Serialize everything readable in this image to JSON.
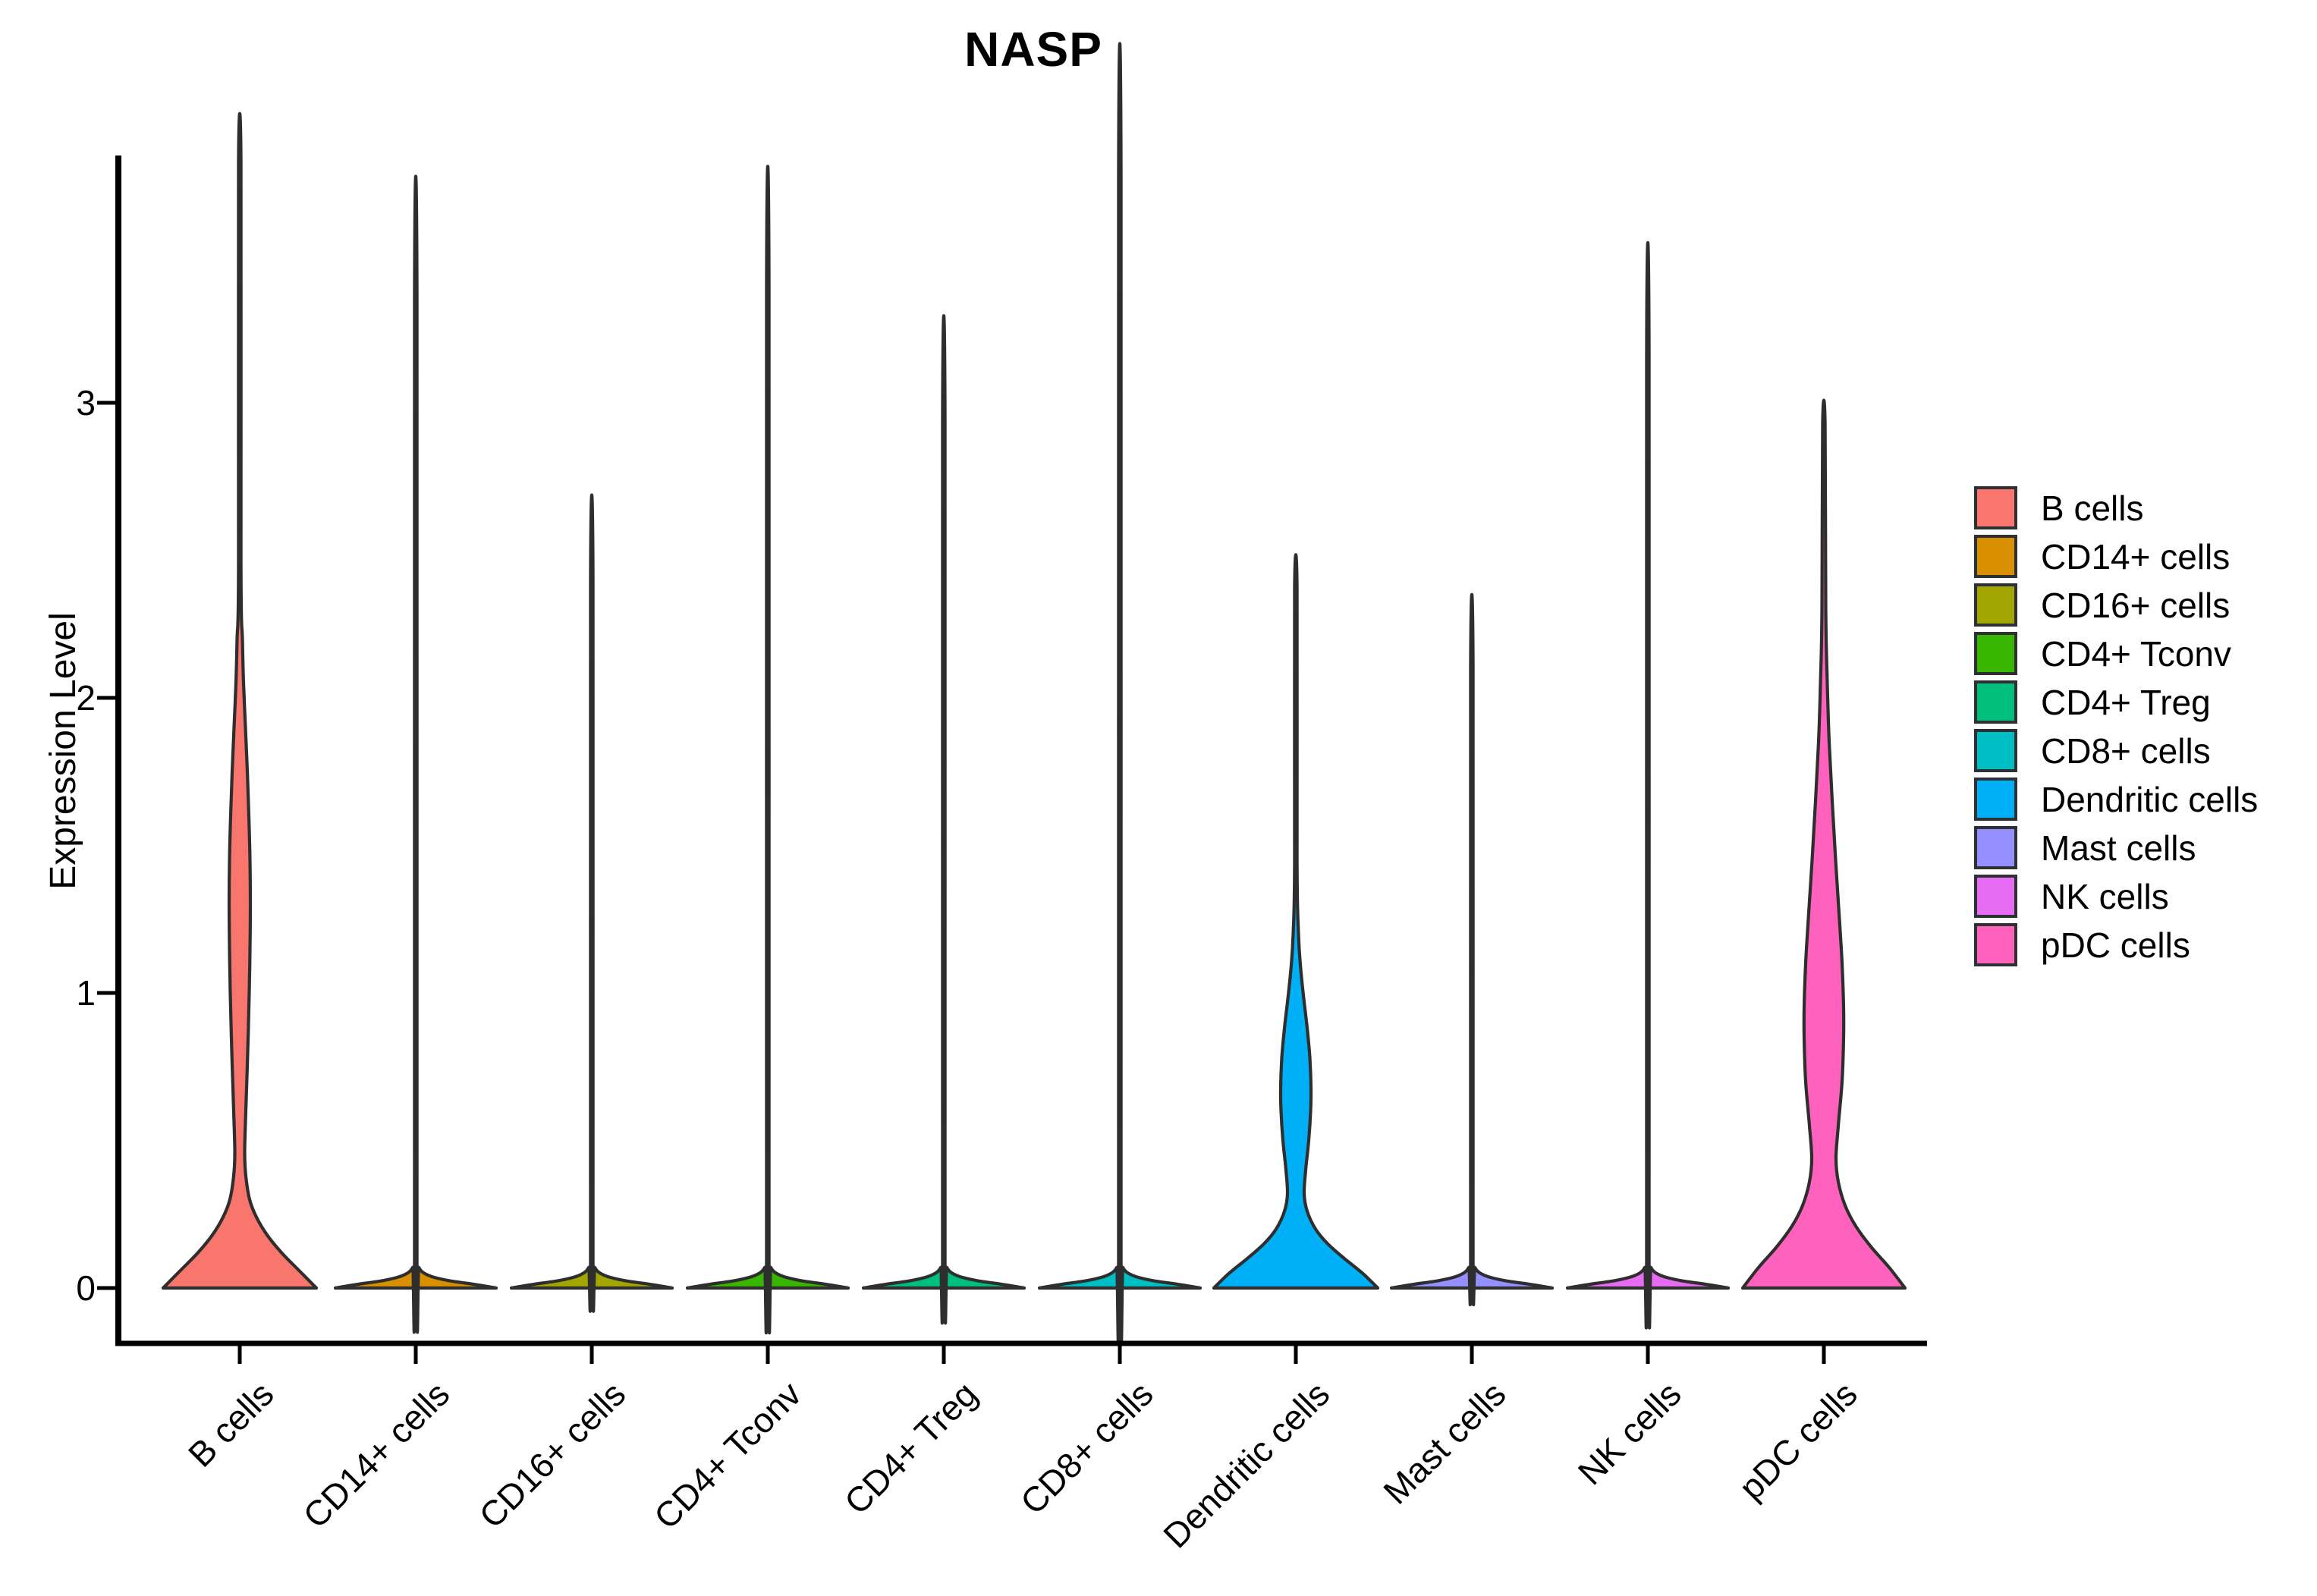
{
  "title": "NASP",
  "chart_data": {
    "type": "violin",
    "title": "NASP",
    "xlabel": "",
    "ylabel": "Expression Level",
    "y_ticks": [
      0,
      1,
      2,
      3
    ],
    "ylim": [
      -0.19,
      3.95
    ],
    "grid": false,
    "legend_position": "right",
    "x_label_rotation_deg": 45,
    "outline_color": "#2e2e2e",
    "categories": [
      "B cells",
      "CD14+ cells",
      "CD16+ cells",
      "CD4+ Tconv",
      "CD4+ Treg",
      "CD8+ cells",
      "Dendritic cells",
      "Mast cells",
      "NK cells",
      "pDC cells"
    ],
    "series": [
      {
        "name": "B cells",
        "color": "#F8766D",
        "max_expression": 3.81,
        "profile": [
          [
            0,
            101
          ],
          [
            0.06,
            78
          ],
          [
            0.12,
            55
          ],
          [
            0.18,
            36
          ],
          [
            0.24,
            22
          ],
          [
            0.3,
            13
          ],
          [
            0.38,
            8
          ],
          [
            0.46,
            6.5
          ],
          [
            0.6,
            8
          ],
          [
            0.8,
            10.5
          ],
          [
            1.0,
            12.5
          ],
          [
            1.15,
            13.5
          ],
          [
            1.3,
            14
          ],
          [
            1.45,
            13.5
          ],
          [
            1.6,
            12
          ],
          [
            1.75,
            10
          ],
          [
            1.9,
            7.5
          ],
          [
            2.05,
            5
          ],
          [
            2.2,
            3.5
          ],
          [
            2.45,
            1.6
          ],
          [
            3.81,
            1.6
          ]
        ]
      },
      {
        "name": "CD14+ cells",
        "color": "#D89000",
        "max_expression": 3.36,
        "profile": [
          [
            0,
            106
          ],
          [
            0.012,
            78
          ],
          [
            0.024,
            46
          ],
          [
            0.038,
            22
          ],
          [
            0.052,
            10
          ],
          [
            0.07,
            4
          ],
          [
            0.1,
            1.6
          ],
          [
            3.36,
            1.6
          ]
        ]
      },
      {
        "name": "CD16+ cells",
        "color": "#A3A500",
        "max_expression": 2.4,
        "profile": [
          [
            0,
            106
          ],
          [
            0.012,
            78
          ],
          [
            0.024,
            46
          ],
          [
            0.038,
            22
          ],
          [
            0.052,
            10
          ],
          [
            0.07,
            4
          ],
          [
            0.1,
            1.6
          ],
          [
            2.4,
            1.6
          ]
        ]
      },
      {
        "name": "CD4+ Tconv",
        "color": "#39B600",
        "max_expression": 3.39,
        "profile": [
          [
            0,
            106
          ],
          [
            0.012,
            78
          ],
          [
            0.024,
            46
          ],
          [
            0.038,
            22
          ],
          [
            0.052,
            10
          ],
          [
            0.07,
            4
          ],
          [
            0.1,
            1.6
          ],
          [
            3.39,
            1.6
          ]
        ]
      },
      {
        "name": "CD4+ Treg",
        "color": "#00BF7D",
        "max_expression": 2.94,
        "profile": [
          [
            0,
            106
          ],
          [
            0.012,
            78
          ],
          [
            0.024,
            46
          ],
          [
            0.038,
            22
          ],
          [
            0.052,
            10
          ],
          [
            0.07,
            4
          ],
          [
            0.1,
            1.6
          ],
          [
            2.94,
            1.6
          ]
        ]
      },
      {
        "name": "CD8+ cells",
        "color": "#00BFC4",
        "max_expression": 3.76,
        "profile": [
          [
            0,
            106
          ],
          [
            0.012,
            78
          ],
          [
            0.024,
            46
          ],
          [
            0.038,
            22
          ],
          [
            0.052,
            10
          ],
          [
            0.07,
            4
          ],
          [
            0.1,
            1.6
          ],
          [
            3.76,
            1.6
          ]
        ]
      },
      {
        "name": "Dendritic cells",
        "color": "#00B0F6",
        "max_expression": 2.37,
        "profile": [
          [
            0,
            108
          ],
          [
            0.05,
            88
          ],
          [
            0.1,
            64
          ],
          [
            0.15,
            42
          ],
          [
            0.2,
            26
          ],
          [
            0.26,
            15
          ],
          [
            0.32,
            11
          ],
          [
            0.4,
            13
          ],
          [
            0.5,
            17
          ],
          [
            0.6,
            19.5
          ],
          [
            0.68,
            20
          ],
          [
            0.78,
            18.5
          ],
          [
            0.88,
            15
          ],
          [
            0.98,
            10.5
          ],
          [
            1.08,
            6.5
          ],
          [
            1.2,
            3.5
          ],
          [
            1.45,
            1.6
          ],
          [
            2.37,
            1.6
          ]
        ]
      },
      {
        "name": "Mast cells",
        "color": "#9590FF",
        "max_expression": 2.1,
        "profile": [
          [
            0,
            106
          ],
          [
            0.012,
            78
          ],
          [
            0.024,
            46
          ],
          [
            0.038,
            22
          ],
          [
            0.052,
            10
          ],
          [
            0.07,
            4
          ],
          [
            0.1,
            1.6
          ],
          [
            2.1,
            1.6
          ]
        ]
      },
      {
        "name": "NK cells",
        "color": "#E76BF3",
        "max_expression": 3.16,
        "profile": [
          [
            0,
            106
          ],
          [
            0.012,
            78
          ],
          [
            0.024,
            46
          ],
          [
            0.038,
            22
          ],
          [
            0.052,
            10
          ],
          [
            0.07,
            4
          ],
          [
            0.1,
            1.6
          ],
          [
            3.16,
            1.6
          ]
        ]
      },
      {
        "name": "pDC cells",
        "color": "#FF62BC",
        "max_expression": 2.93,
        "profile": [
          [
            0,
            107
          ],
          [
            0.07,
            86
          ],
          [
            0.14,
            62
          ],
          [
            0.21,
            42
          ],
          [
            0.28,
            28
          ],
          [
            0.36,
            19
          ],
          [
            0.44,
            16
          ],
          [
            0.55,
            19
          ],
          [
            0.7,
            24
          ],
          [
            0.85,
            26
          ],
          [
            0.95,
            26
          ],
          [
            1.1,
            24
          ],
          [
            1.25,
            20.5
          ],
          [
            1.45,
            15.5
          ],
          [
            1.65,
            11
          ],
          [
            1.85,
            7
          ],
          [
            2.05,
            4.5
          ],
          [
            2.3,
            2.5
          ],
          [
            2.93,
            1.6
          ]
        ]
      }
    ]
  }
}
